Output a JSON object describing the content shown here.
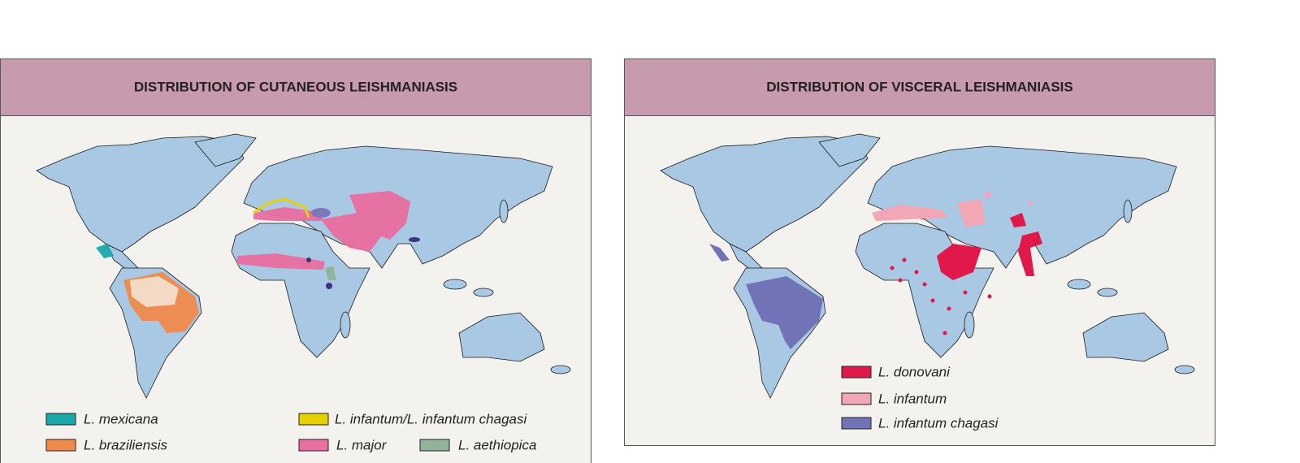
{
  "panels": [
    {
      "title": "DISTRIBUTION OF CUTANEOUS LEISHMANIASIS",
      "legend": [
        {
          "label": "L. mexicana",
          "color": "#1aa9ab"
        },
        {
          "label": "L. braziliensis",
          "color": "#f08a4b"
        },
        {
          "label": "L. infantum/L. infantum chagasi",
          "color": "#e6d200"
        },
        {
          "label": "L. major",
          "color": "#ea6ea0"
        },
        {
          "label": "L. aethiopica",
          "color": "#8fb49a"
        }
      ]
    },
    {
      "title": "DISTRIBUTION OF VISCERAL LEISHMANIASIS",
      "legend": [
        {
          "label": "L. donovani",
          "color": "#e0194a"
        },
        {
          "label": "L. infantum",
          "color": "#f2a7b7"
        },
        {
          "label": "L. infantum chagasi",
          "color": "#7272b6"
        }
      ]
    }
  ]
}
